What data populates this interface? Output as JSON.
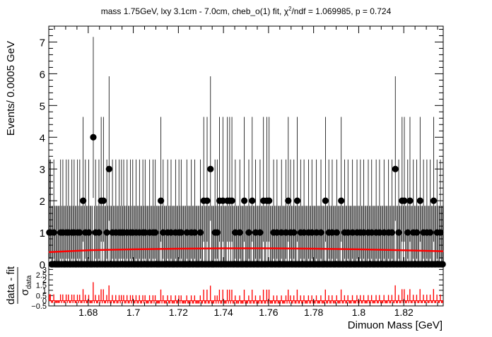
{
  "chart_data": [
    {
      "type": "scatter",
      "title": "mass 1.75GeV, lxy 3.1cm - 7.0cm, cheb_o(1) fit, χ²/ndf = 1.069985, p = 0.724",
      "title_parts": {
        "prefix": "mass 1.75GeV, lxy 3.1cm - 7.0cm, cheb_o(1) fit, χ",
        "sup": "2",
        "suffix": "/ndf = 1.069985, p = 0.724"
      },
      "ylabel": "Events/ 0.0005 GeV",
      "xlim": [
        1.6625,
        1.8375
      ],
      "ylim": [
        0,
        7.5
      ],
      "yticks": [
        "0",
        "1",
        "2",
        "3",
        "4",
        "5",
        "6",
        "7"
      ],
      "grid": false,
      "bin_width": 0.0005,
      "marker_color": "#000000",
      "nonzero_bins": [
        {
          "x": 1.66275,
          "y": 1
        },
        {
          "x": 1.66325,
          "y": 1
        },
        {
          "x": 1.66475,
          "y": 1
        },
        {
          "x": 1.66775,
          "y": 1
        },
        {
          "x": 1.66875,
          "y": 1
        },
        {
          "x": 1.67025,
          "y": 1
        },
        {
          "x": 1.67125,
          "y": 1
        },
        {
          "x": 1.67275,
          "y": 1
        },
        {
          "x": 1.67375,
          "y": 1
        },
        {
          "x": 1.67525,
          "y": 1
        },
        {
          "x": 1.67625,
          "y": 1
        },
        {
          "x": 1.67775,
          "y": 2
        },
        {
          "x": 1.67875,
          "y": 1
        },
        {
          "x": 1.68025,
          "y": 1
        },
        {
          "x": 1.68225,
          "y": 4
        },
        {
          "x": 1.68325,
          "y": 1
        },
        {
          "x": 1.68475,
          "y": 1
        },
        {
          "x": 1.68575,
          "y": 2
        },
        {
          "x": 1.68675,
          "y": 2
        },
        {
          "x": 1.68825,
          "y": 1
        },
        {
          "x": 1.68925,
          "y": 3
        },
        {
          "x": 1.69075,
          "y": 1
        },
        {
          "x": 1.69225,
          "y": 1
        },
        {
          "x": 1.69375,
          "y": 1
        },
        {
          "x": 1.69475,
          "y": 1
        },
        {
          "x": 1.69575,
          "y": 1
        },
        {
          "x": 1.69725,
          "y": 1
        },
        {
          "x": 1.69875,
          "y": 1
        },
        {
          "x": 1.69975,
          "y": 1
        },
        {
          "x": 1.70125,
          "y": 1
        },
        {
          "x": 1.70275,
          "y": 1
        },
        {
          "x": 1.70425,
          "y": 1
        },
        {
          "x": 1.70525,
          "y": 1
        },
        {
          "x": 1.70725,
          "y": 1
        },
        {
          "x": 1.70875,
          "y": 1
        },
        {
          "x": 1.70975,
          "y": 1
        },
        {
          "x": 1.71225,
          "y": 2
        },
        {
          "x": 1.71325,
          "y": 1
        },
        {
          "x": 1.71525,
          "y": 1
        },
        {
          "x": 1.71675,
          "y": 1
        },
        {
          "x": 1.71875,
          "y": 1
        },
        {
          "x": 1.72025,
          "y": 1
        },
        {
          "x": 1.72125,
          "y": 1
        },
        {
          "x": 1.72375,
          "y": 1
        },
        {
          "x": 1.72575,
          "y": 1
        },
        {
          "x": 1.72725,
          "y": 1
        },
        {
          "x": 1.72975,
          "y": 1
        },
        {
          "x": 1.73125,
          "y": 2
        },
        {
          "x": 1.73275,
          "y": 2
        },
        {
          "x": 1.73425,
          "y": 3
        },
        {
          "x": 1.73625,
          "y": 1
        },
        {
          "x": 1.73725,
          "y": 1
        },
        {
          "x": 1.73825,
          "y": 2
        },
        {
          "x": 1.73975,
          "y": 2
        },
        {
          "x": 1.74175,
          "y": 2
        },
        {
          "x": 1.74275,
          "y": 2
        },
        {
          "x": 1.74375,
          "y": 2
        },
        {
          "x": 1.74525,
          "y": 1
        },
        {
          "x": 1.74725,
          "y": 1
        },
        {
          "x": 1.74925,
          "y": 2
        },
        {
          "x": 1.75125,
          "y": 1
        },
        {
          "x": 1.75275,
          "y": 2
        },
        {
          "x": 1.75425,
          "y": 1
        },
        {
          "x": 1.75625,
          "y": 1
        },
        {
          "x": 1.75775,
          "y": 2
        },
        {
          "x": 1.75925,
          "y": 2
        },
        {
          "x": 1.76025,
          "y": 2
        },
        {
          "x": 1.76225,
          "y": 1
        },
        {
          "x": 1.76375,
          "y": 1
        },
        {
          "x": 1.76575,
          "y": 1
        },
        {
          "x": 1.76775,
          "y": 1
        },
        {
          "x": 1.76875,
          "y": 2
        },
        {
          "x": 1.76975,
          "y": 1
        },
        {
          "x": 1.77125,
          "y": 1
        },
        {
          "x": 1.77275,
          "y": 2
        },
        {
          "x": 1.77425,
          "y": 1
        },
        {
          "x": 1.77575,
          "y": 1
        },
        {
          "x": 1.77775,
          "y": 1
        },
        {
          "x": 1.77925,
          "y": 1
        },
        {
          "x": 1.78125,
          "y": 1
        },
        {
          "x": 1.78325,
          "y": 1
        },
        {
          "x": 1.78525,
          "y": 2
        },
        {
          "x": 1.78675,
          "y": 1
        },
        {
          "x": 1.78825,
          "y": 1
        },
        {
          "x": 1.79025,
          "y": 1
        },
        {
          "x": 1.79225,
          "y": 2
        },
        {
          "x": 1.79375,
          "y": 1
        },
        {
          "x": 1.79525,
          "y": 1
        },
        {
          "x": 1.79725,
          "y": 1
        },
        {
          "x": 1.79925,
          "y": 1
        },
        {
          "x": 1.80075,
          "y": 1
        },
        {
          "x": 1.80225,
          "y": 1
        },
        {
          "x": 1.80425,
          "y": 1
        },
        {
          "x": 1.80575,
          "y": 1
        },
        {
          "x": 1.80775,
          "y": 1
        },
        {
          "x": 1.80925,
          "y": 1
        },
        {
          "x": 1.81125,
          "y": 1
        },
        {
          "x": 1.81325,
          "y": 1
        },
        {
          "x": 1.81475,
          "y": 1
        },
        {
          "x": 1.81625,
          "y": 3
        },
        {
          "x": 1.81775,
          "y": 1
        },
        {
          "x": 1.81925,
          "y": 2
        },
        {
          "x": 1.82025,
          "y": 2
        },
        {
          "x": 1.82175,
          "y": 1
        },
        {
          "x": 1.82275,
          "y": 2
        },
        {
          "x": 1.82425,
          "y": 1
        },
        {
          "x": 1.82575,
          "y": 1
        },
        {
          "x": 1.82725,
          "y": 2
        },
        {
          "x": 1.82875,
          "y": 1
        },
        {
          "x": 1.83025,
          "y": 1
        },
        {
          "x": 1.83175,
          "y": 1
        },
        {
          "x": 1.83325,
          "y": 2
        },
        {
          "x": 1.83475,
          "y": 1
        },
        {
          "x": 1.83625,
          "y": 1
        }
      ],
      "fit": {
        "color": "#ff0000",
        "x": [
          1.6625,
          1.68,
          1.7,
          1.72,
          1.74,
          1.76,
          1.78,
          1.8,
          1.82,
          1.8375
        ],
        "y": [
          0.38,
          0.44,
          0.47,
          0.49,
          0.5,
          0.5,
          0.49,
          0.47,
          0.44,
          0.41
        ]
      }
    },
    {
      "type": "bar",
      "ylabel_num": "data - fit",
      "ylabel_den": "σ",
      "ylabel_den_sub": "data",
      "xlabel": "Dimuon Mass [GeV]",
      "xlim": [
        1.6625,
        1.8375
      ],
      "ylim": [
        -0.5,
        3.5
      ],
      "yticks": [
        "−0.5",
        "0",
        "0.5",
        "1",
        "1.5",
        "2",
        "2.5",
        "3"
      ],
      "xticks": [
        "1.68",
        "1.7",
        "1.72",
        "1.74",
        "1.76",
        "1.78",
        "1.8",
        "1.82"
      ],
      "bar_color": "#ff0000",
      "pull_unit_sigma": 1,
      "pull_pattern_note": "pulls follow the upper-panel bins; empty bins are slightly negative"
    }
  ]
}
